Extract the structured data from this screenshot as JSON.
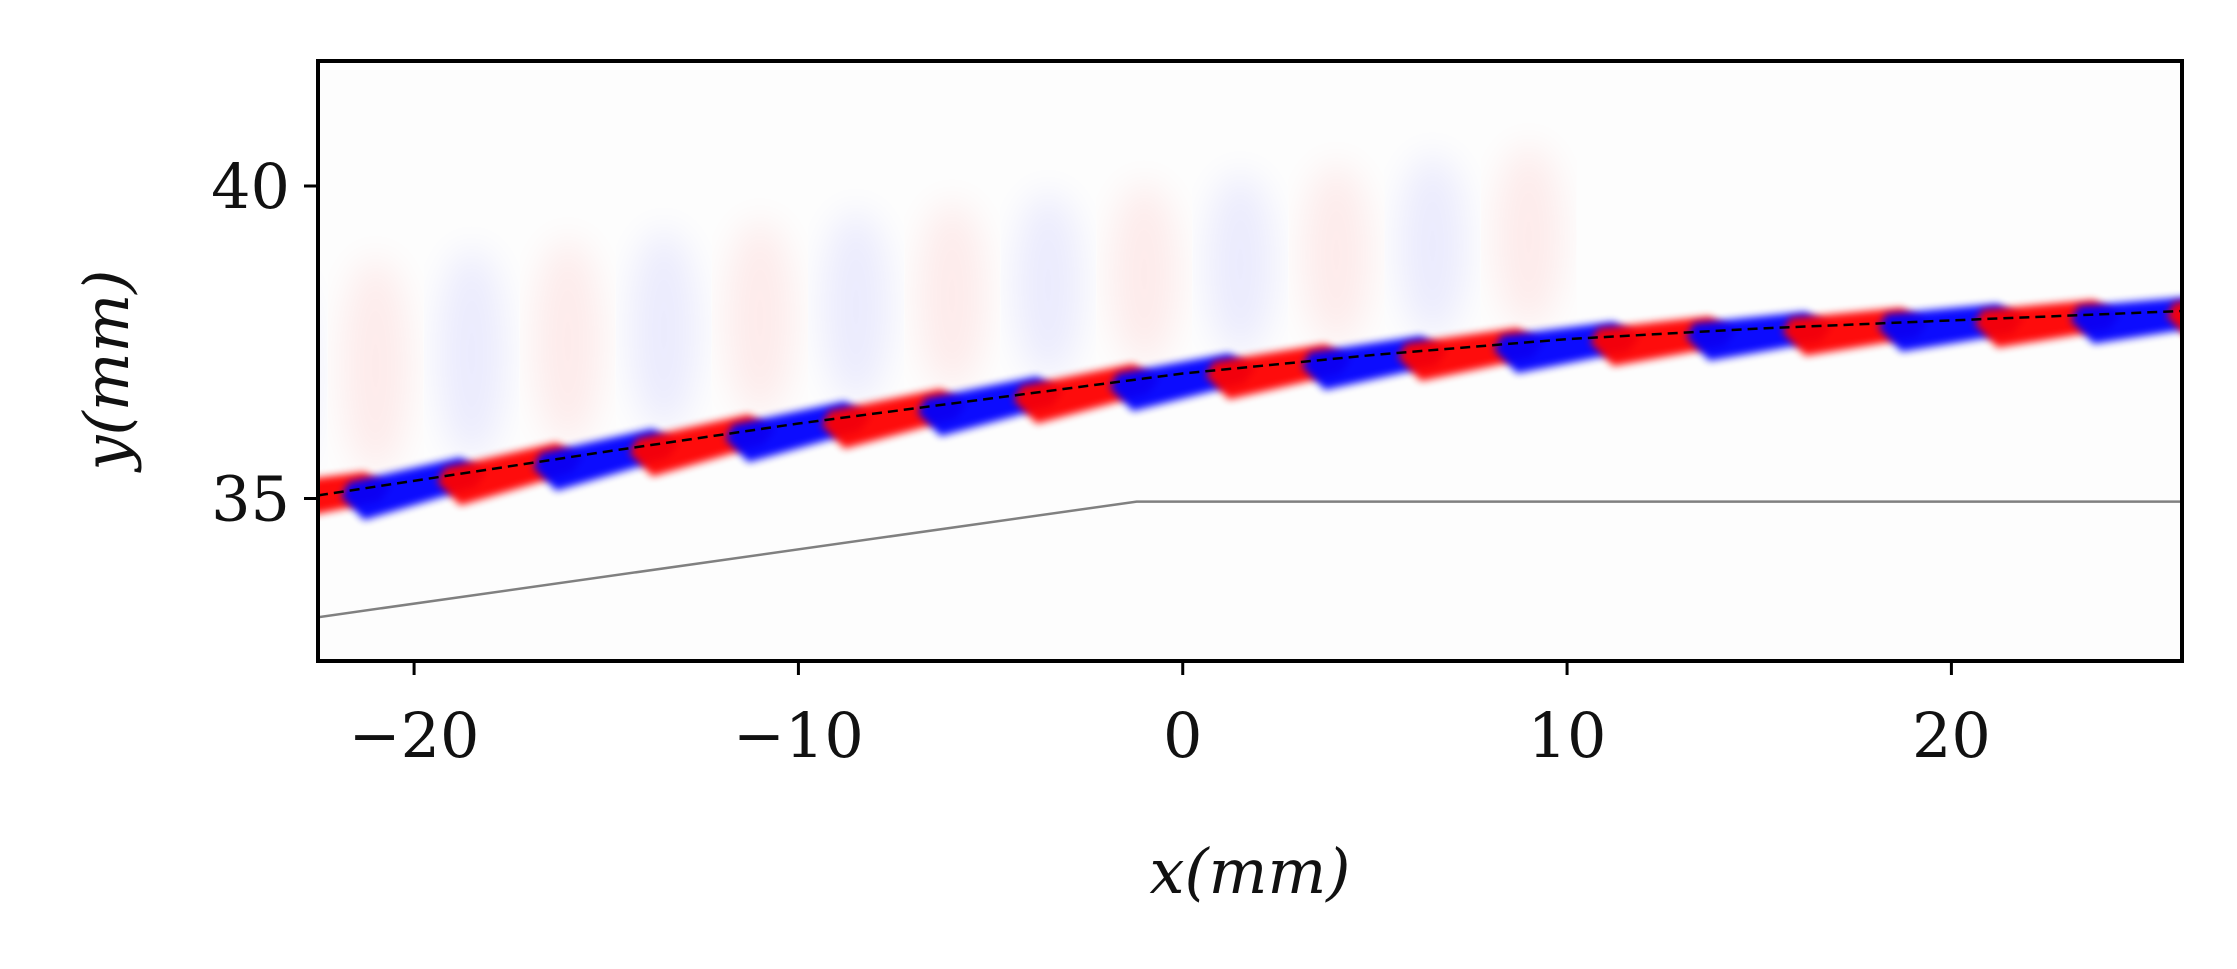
{
  "chart_data": {
    "type": "heatmap",
    "title": "",
    "xlabel": "x(mm)",
    "ylabel": "y(mm)",
    "xlim": [
      -22.5,
      26
    ],
    "ylim": [
      32.4,
      42
    ],
    "xticks": [
      -20,
      -10,
      0,
      10,
      20
    ],
    "xtick_labels": [
      "−20",
      "−10",
      "0",
      "10",
      "20"
    ],
    "yticks": [
      35,
      40
    ],
    "ytick_labels": [
      "35",
      "40"
    ],
    "colormap": {
      "positive": "#ff0000",
      "negative": "#0000ff",
      "zero": "#ffffff"
    },
    "wave_field": {
      "wavelength_mm": 5.0,
      "band_half_width_mm": 0.5,
      "description_series": [
        {
          "name": "dashed centerline",
          "x": [
            -22.5,
            -15,
            -10,
            -5,
            0,
            5,
            10,
            15,
            20,
            26
          ],
          "y": [
            35.05,
            35.75,
            36.2,
            36.6,
            37.0,
            37.3,
            37.55,
            37.72,
            37.85,
            38.0
          ]
        }
      ]
    },
    "wall_geometry": {
      "name": "wall",
      "x": [
        -22.5,
        -1.2,
        26
      ],
      "y": [
        33.1,
        34.95,
        34.95
      ]
    },
    "colors": {
      "wall": "#808080",
      "centerline": "#000000",
      "frame": "#000000"
    }
  }
}
